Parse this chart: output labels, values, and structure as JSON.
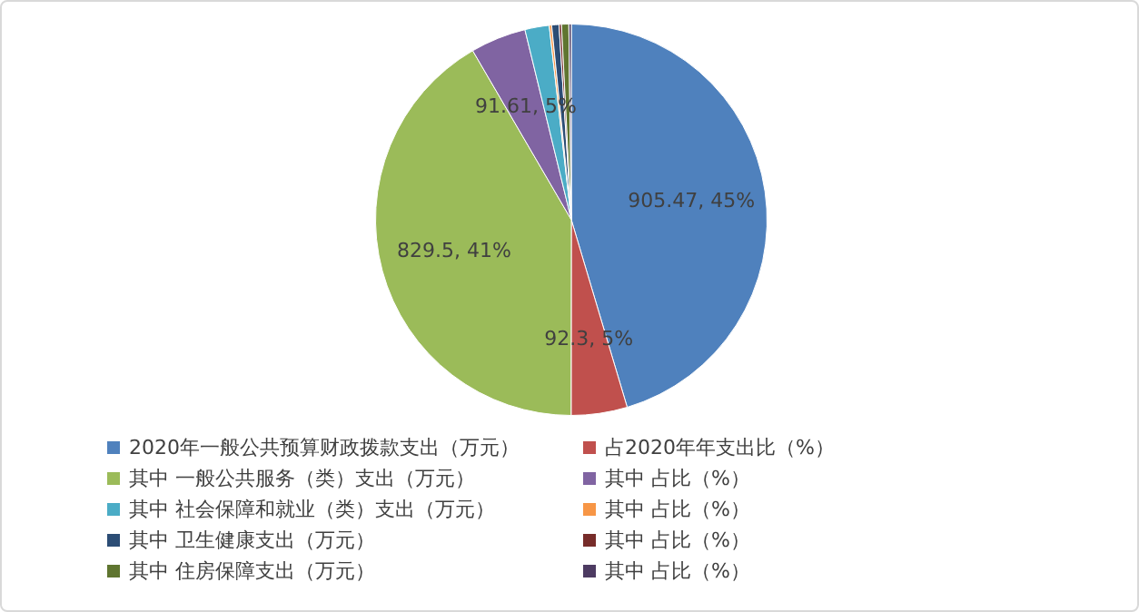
{
  "chart_data": {
    "type": "pie",
    "categories": [
      "2020年一般公共预算财政拨款支出（万元）",
      "占2020年年支出比（%）",
      "其中 一般公共服务（类）支出（万元）",
      "其中 占比（%）",
      "其中 社会保障和就业（类）支出（万元）",
      "其中 占比（%）",
      "其中 卫生健康支出（万元）",
      "其中 占比（%）",
      "其中 住房保障支出（万元）",
      "其中 占比（%）"
    ],
    "values": [
      905.47,
      92.3,
      829.5,
      91.61,
      40,
      4,
      12,
      4,
      12,
      4
    ],
    "colors": [
      "#4f81bd",
      "#c0504d",
      "#9bbb59",
      "#8064a2",
      "#4bacc6",
      "#f79646",
      "#2c4d75",
      "#772c2a",
      "#5f7530",
      "#4d3b62"
    ],
    "value_labels": [
      "905.47, 45%",
      "92.3, 5%",
      "829.5, 41%",
      "91.61, 5%",
      null,
      null,
      null,
      null,
      null,
      null
    ],
    "legend": "bottom"
  }
}
